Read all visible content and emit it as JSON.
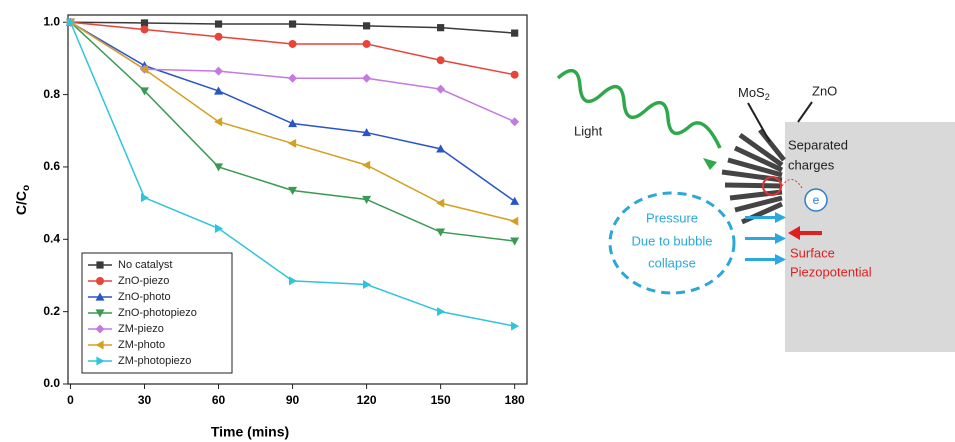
{
  "chart_data": {
    "type": "line",
    "x_label": "Time (mins)",
    "y_label": "C/C",
    "y_label_sub": "o",
    "x": [
      0,
      30,
      60,
      90,
      120,
      150,
      180
    ],
    "xlim": [
      -1,
      185
    ],
    "ylim": [
      0,
      1.02
    ],
    "xticks": [
      0,
      30,
      60,
      90,
      120,
      150,
      180
    ],
    "yticks": [
      {
        "value": 0,
        "label": "0.0"
      },
      {
        "value": 0.2,
        "label": "0.2"
      },
      {
        "value": 0.4,
        "label": "0.4"
      },
      {
        "value": 0.6,
        "label": "0.6"
      },
      {
        "value": 0.8,
        "label": "0.8"
      },
      {
        "value": 1,
        "label": "1.0"
      }
    ],
    "legend": "lower left",
    "series": [
      {
        "name": "No catalyst",
        "color": "#3a3a3a",
        "marker": "square",
        "values": [
          1,
          0.998,
          0.995,
          0.995,
          0.99,
          0.985,
          0.97
        ]
      },
      {
        "name": "ZnO-piezo",
        "color": "#e8443a",
        "marker": "circle",
        "values": [
          1,
          0.98,
          0.96,
          0.94,
          0.94,
          0.895,
          0.855
        ]
      },
      {
        "name": "ZnO-photo",
        "color": "#2a55c8",
        "marker": "triangle-up",
        "values": [
          1,
          0.88,
          0.81,
          0.72,
          0.695,
          0.65,
          0.505
        ]
      },
      {
        "name": "ZnO-photopiezo",
        "color": "#3a9a52",
        "marker": "triangle-down",
        "values": [
          1,
          0.81,
          0.6,
          0.535,
          0.51,
          0.42,
          0.395
        ]
      },
      {
        "name": "ZM-piezo",
        "color": "#c47ae0",
        "marker": "diamond",
        "values": [
          1,
          0.87,
          0.865,
          0.845,
          0.845,
          0.815,
          0.725
        ]
      },
      {
        "name": "ZM-photo",
        "color": "#d4a020",
        "marker": "triangle-left",
        "values": [
          1,
          0.87,
          0.725,
          0.665,
          0.605,
          0.5,
          0.45
        ]
      },
      {
        "name": "ZM-photopiezo",
        "color": "#30c4dc",
        "marker": "triangle-right",
        "values": [
          1,
          0.515,
          0.43,
          0.285,
          0.275,
          0.2,
          0.16
        ]
      }
    ]
  },
  "diagram": {
    "light": "Light",
    "mos2": "MoS",
    "mos2_sub": "2",
    "zno": "ZnO",
    "separated": [
      "Separated",
      "charges"
    ],
    "electron": "e",
    "pressure": [
      "Pressure",
      "Due to bubble",
      "collapse"
    ],
    "surface": [
      "Surface",
      "Piezopotential"
    ]
  }
}
